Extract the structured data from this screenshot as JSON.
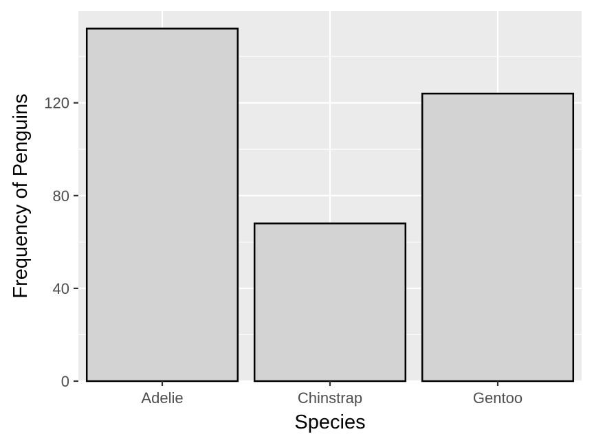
{
  "chart_data": {
    "type": "bar",
    "categories": [
      "Adelie",
      "Chinstrap",
      "Gentoo"
    ],
    "values": [
      152,
      68,
      124
    ],
    "title": "",
    "xlabel": "Species",
    "ylabel": "Frequency of Penguins",
    "ylim": [
      0,
      159.6
    ],
    "y_ticks": [
      0,
      40,
      80,
      120
    ],
    "y_tick_labels": [
      "0",
      "40",
      "80",
      "120"
    ],
    "grid": true,
    "colors": {
      "panel_background": "#ebebeb",
      "grid_major": "#ffffff",
      "bar_fill": "#d3d3d3",
      "bar_outline": "#000000",
      "tick_color": "#333333"
    }
  }
}
